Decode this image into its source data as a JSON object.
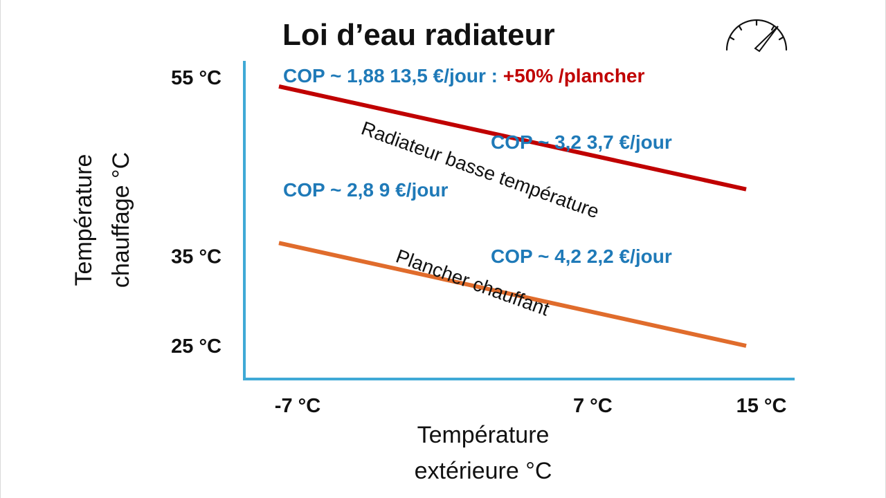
{
  "chart_data": {
    "type": "line",
    "title": "Loi d’eau radiateur",
    "xlabel": [
      "Température",
      "extérieure °C"
    ],
    "ylabel": [
      "Température",
      "chauffage °C"
    ],
    "x_ticks": [
      {
        "value": -7,
        "label": "-7 °C"
      },
      {
        "value": 7,
        "label": "7 °C"
      },
      {
        "value": 15,
        "label": "15 °C"
      }
    ],
    "y_ticks": [
      {
        "value": 25,
        "label": "25 °C"
      },
      {
        "value": 35,
        "label": "35 °C"
      },
      {
        "value": 55,
        "label": "55 °C"
      }
    ],
    "series": [
      {
        "name": "Radiateur basse température",
        "color": "#c00000",
        "points": [
          {
            "x": -7,
            "y": 54
          },
          {
            "x": 15,
            "y": 42.5
          }
        ]
      },
      {
        "name": "Plancher chauffant",
        "color": "#e06c2c",
        "points": [
          {
            "x": -7,
            "y": 36.5
          },
          {
            "x": 15,
            "y": 25
          }
        ]
      }
    ],
    "annotations": [
      {
        "text": "COP ~ 1,88  13,5 €/jour : ",
        "highlight": "+50% /plancher",
        "color": "#1f7ab8",
        "highlight_color": "#c00000"
      },
      {
        "text": "COP ~ 3,2  3,7 €/jour",
        "color": "#1f7ab8"
      },
      {
        "text": "COP ~ 2,8  9 €/jour",
        "color": "#1f7ab8"
      },
      {
        "text": "COP ~ 4,2  2,2 €/jour",
        "color": "#1f7ab8"
      }
    ],
    "axis_color": "#3fa9d6",
    "grid": false
  },
  "icons": {
    "corner": "speedometer-icon"
  }
}
